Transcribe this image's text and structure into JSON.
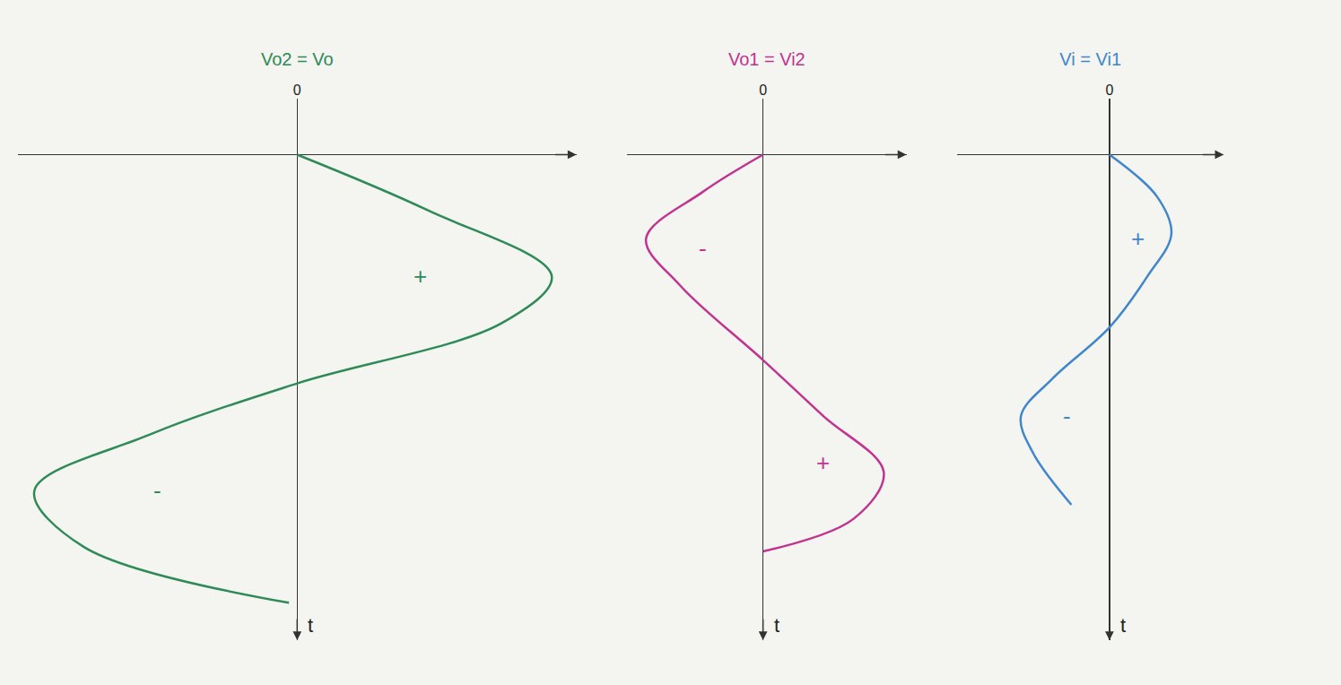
{
  "chart_data": [
    {
      "type": "line",
      "xlabel": "t",
      "ylabel": "Vo2 = Vo",
      "color": "#2e8b57",
      "x": [
        0,
        0.6,
        1.3,
        1.8,
        2.45,
        3.0,
        3.6,
        4.2,
        4.8
      ],
      "values": [
        0,
        1.6,
        3.1,
        2.5,
        0,
        -1.8,
        -3.2,
        -2.6,
        -0.1
      ],
      "xlim": [
        -0.6,
        5.2
      ],
      "ylim": [
        -3.4,
        3.4
      ],
      "xticks": [],
      "yticks": [
        0
      ],
      "tick_labels": "y",
      "annotations": [
        {
          "text": "+",
          "x": 1.3,
          "y": 1.5
        },
        {
          "text": "-",
          "x": 3.6,
          "y": -1.7
        }
      ]
    },
    {
      "type": "line",
      "xlabel": "t",
      "ylabel": "Vo1 = Vi2",
      "color": "#c2338f",
      "x": [
        0,
        0.4,
        0.9,
        1.4,
        2.2,
        2.8,
        3.4,
        3.9,
        4.25
      ],
      "values": [
        0,
        -0.8,
        -1.55,
        -1.1,
        0,
        0.8,
        1.6,
        1.2,
        0
      ],
      "xlim": [
        -0.6,
        5.2
      ],
      "ylim": [
        -1.8,
        1.9
      ],
      "xticks": [],
      "yticks": [
        0
      ],
      "tick_labels": "y",
      "annotations": [
        {
          "text": "-",
          "x": 1.0,
          "y": -0.8
        },
        {
          "text": "+",
          "x": 3.3,
          "y": 0.8
        }
      ]
    },
    {
      "type": "line",
      "xlabel": "t",
      "ylabel": "Vi = Vi1",
      "color": "#3f86cc",
      "x": [
        0,
        0.45,
        0.85,
        1.3,
        1.85,
        2.4,
        2.8,
        3.2,
        3.75
      ],
      "values": [
        0,
        0.5,
        0.65,
        0.4,
        0,
        -0.6,
        -0.93,
        -0.8,
        -0.4
      ],
      "xlim": [
        -0.6,
        5.2
      ],
      "ylim": [
        -1.6,
        1.2
      ],
      "xticks": [],
      "yticks": [
        0
      ],
      "tick_labels": "y",
      "annotations": [
        {
          "text": "+",
          "x": 0.9,
          "y": 0.3
        },
        {
          "text": "-",
          "x": 2.8,
          "y": -0.45
        }
      ]
    }
  ]
}
